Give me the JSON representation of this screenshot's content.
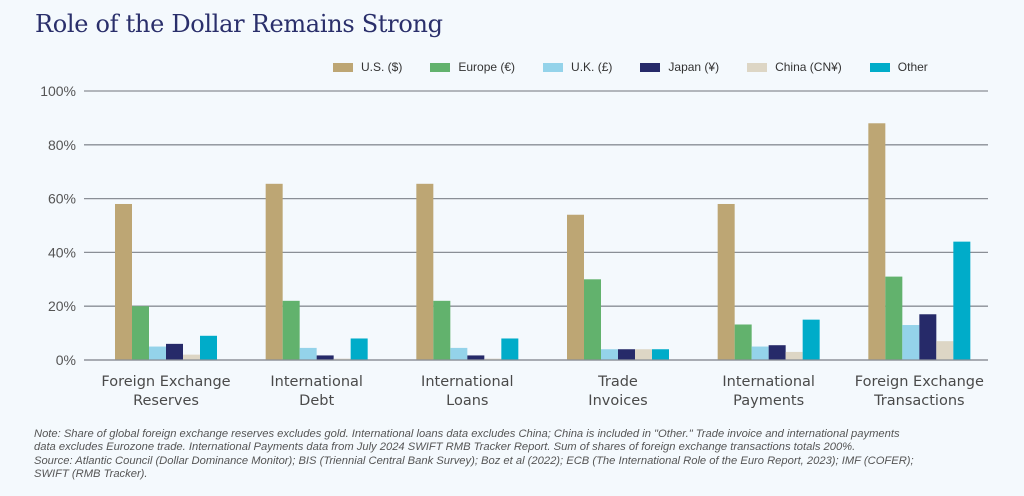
{
  "chart_data": {
    "type": "bar",
    "title": "Role of the Dollar Remains Strong",
    "xlabel": "",
    "ylabel": "",
    "ylim": [
      0,
      100
    ],
    "yticks": [
      "0%",
      "20%",
      "40%",
      "60%",
      "80%",
      "100%"
    ],
    "ytick_values": [
      0,
      20,
      40,
      60,
      80,
      100
    ],
    "grid": true,
    "legend_position": "top-right",
    "categories": [
      [
        "Foreign Exchange",
        "Reserves"
      ],
      [
        "International",
        "Debt"
      ],
      [
        "International",
        "Loans"
      ],
      [
        "Trade",
        "Invoices"
      ],
      [
        "International",
        "Payments"
      ],
      [
        "Foreign Exchange",
        "Transactions"
      ]
    ],
    "series": [
      {
        "name": "U.S. ($)",
        "color": "#bda674",
        "values": [
          58,
          65.5,
          65.5,
          54,
          58,
          88
        ]
      },
      {
        "name": "Europe (€)",
        "color": "#62b26d",
        "values": [
          20,
          22,
          22,
          30,
          13.2,
          31
        ]
      },
      {
        "name": "U.K. (£)",
        "color": "#94d3ea",
        "values": [
          5,
          4.5,
          4.5,
          4,
          5,
          13
        ]
      },
      {
        "name": "Japan (¥)",
        "color": "#262a69",
        "values": [
          6,
          1.7,
          1.7,
          4,
          5.5,
          17
        ]
      },
      {
        "name": "China (CN¥)",
        "color": "#ddd6c5",
        "values": [
          2,
          0.5,
          0.5,
          4,
          3,
          7
        ]
      },
      {
        "name": "Other",
        "color": "#00acc9",
        "values": [
          9,
          8,
          8,
          4,
          15,
          44
        ]
      }
    ]
  },
  "note_lines": [
    "Note: Share of global foreign exchange reserves excludes gold. International loans data excludes China; China is included in \"Other.\" Trade invoice and international payments",
    "data excludes Eurozone trade. International Payments data from July 2024 SWIFT RMB Tracker Report. Sum of shares of foreign exchange transactions totals 200%.",
    "Source: Atlantic Council (Dollar Dominance Monitor); BIS (Triennial Central Bank Survey); Boz et al (2022); ECB (The International Role of the Euro Report, 2023); IMF (COFER);",
    "SWIFT (RMB Tracker)."
  ]
}
